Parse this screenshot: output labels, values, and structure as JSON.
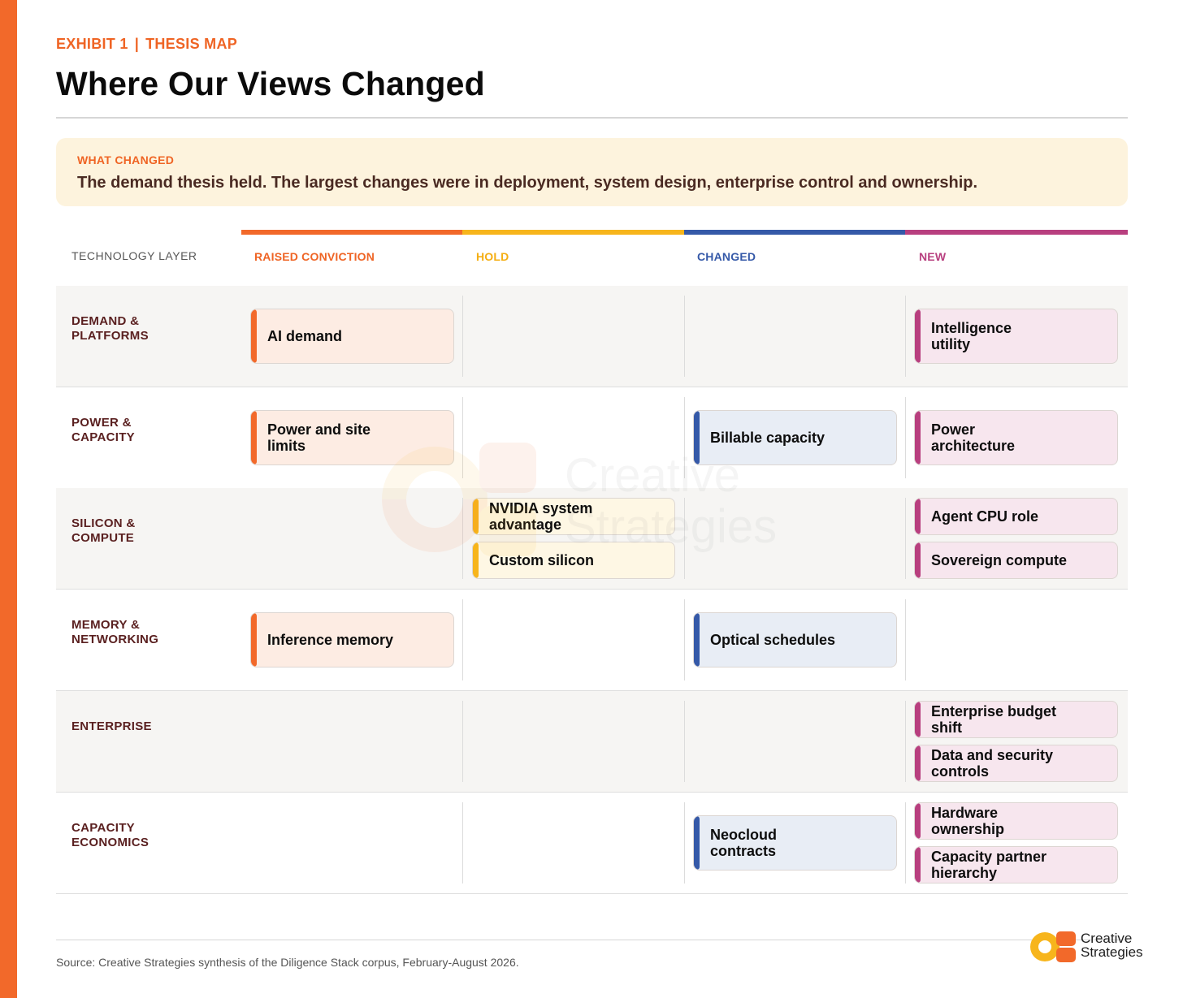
{
  "header": {
    "exhibit": "EXHIBIT 1",
    "separator": "|",
    "section": "THESIS MAP",
    "title": "Where Our Views Changed"
  },
  "callout": {
    "label": "WHAT CHANGED",
    "text": "The demand thesis held. The largest changes were in deployment, system design, enterprise control and ownership."
  },
  "columns": {
    "layer_header": "TECHNOLOGY LAYER",
    "raised": {
      "label": "RAISED CONVICTION",
      "color": "#f2692a"
    },
    "hold": {
      "label": "HOLD",
      "color": "#f7b51c"
    },
    "changed": {
      "label": "CHANGED",
      "color": "#3559a8"
    },
    "new": {
      "label": "NEW",
      "color": "#b83f7f"
    }
  },
  "rows": [
    {
      "label": "DEMAND &\nPLATFORMS",
      "raised": [
        "AI demand"
      ],
      "hold": [],
      "changed": [],
      "new": [
        "Intelligence\nutility"
      ]
    },
    {
      "label": "POWER &\nCAPACITY",
      "raised": [
        "Power and site\nlimits"
      ],
      "hold": [],
      "changed": [
        "Billable capacity"
      ],
      "new": [
        "Power\narchitecture"
      ]
    },
    {
      "label": "SILICON &\nCOMPUTE",
      "raised": [],
      "hold": [
        "NVIDIA system\nadvantage",
        "Custom silicon"
      ],
      "changed": [],
      "new": [
        "Agent CPU role",
        "Sovereign compute"
      ]
    },
    {
      "label": "MEMORY &\nNETWORKING",
      "raised": [
        "Inference memory"
      ],
      "hold": [],
      "changed": [
        "Optical schedules"
      ],
      "new": []
    },
    {
      "label": "ENTERPRISE",
      "raised": [],
      "hold": [],
      "changed": [],
      "new": [
        "Enterprise budget\nshift",
        "Data and security\ncontrols"
      ]
    },
    {
      "label": "CAPACITY\nECONOMICS",
      "raised": [],
      "hold": [],
      "changed": [
        "Neocloud\ncontracts"
      ],
      "new": [
        "Hardware\nownership",
        "Capacity partner\nhierarchy"
      ]
    }
  ],
  "footer": {
    "source": "Source: Creative Strategies synthesis of the Diligence Stack corpus, February-August 2026.",
    "logo_text": "Creative\nStrategies",
    "watermark_text": "Creative\nStrategies"
  }
}
